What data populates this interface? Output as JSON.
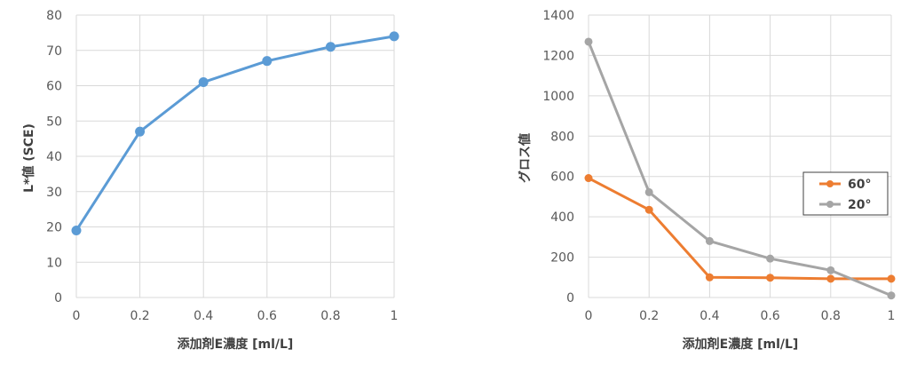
{
  "chart_data": [
    {
      "type": "line",
      "title": "",
      "xlabel": "添加剤E濃度 [ml/L]",
      "ylabel": "L*値 (SCE)",
      "x": [
        0,
        0.2,
        0.4,
        0.6,
        0.8,
        1
      ],
      "x_ticks": [
        "0",
        "0.2",
        "0.4",
        "0.6",
        "0.8",
        "1"
      ],
      "y_ticks": [
        "0",
        "10",
        "20",
        "30",
        "40",
        "50",
        "60",
        "70",
        "80"
      ],
      "xlim": [
        0,
        1
      ],
      "ylim": [
        0,
        80
      ],
      "grid": true,
      "legend": "none",
      "series": [
        {
          "values": [
            19,
            47,
            61,
            67,
            71,
            74
          ],
          "color": "#5b9bd5"
        }
      ]
    },
    {
      "type": "line",
      "title": "",
      "xlabel": "添加剤E濃度 [ml/L]",
      "ylabel": "グロス値",
      "x": [
        0,
        0.2,
        0.4,
        0.6,
        0.8,
        1
      ],
      "x_ticks": [
        "0",
        "0.2",
        "0.4",
        "0.6",
        "0.8",
        "1"
      ],
      "y_ticks": [
        "0",
        "200",
        "400",
        "600",
        "800",
        "1000",
        "1200",
        "1400"
      ],
      "xlim": [
        0,
        1
      ],
      "ylim": [
        0,
        1400
      ],
      "grid": true,
      "legend": "right",
      "series": [
        {
          "name": "60°",
          "values": [
            592,
            435,
            100,
            98,
            93,
            93
          ],
          "color": "#ed7d31"
        },
        {
          "name": "20°",
          "values": [
            1268,
            522,
            280,
            193,
            135,
            10
          ],
          "color": "#a5a5a5"
        }
      ]
    }
  ]
}
